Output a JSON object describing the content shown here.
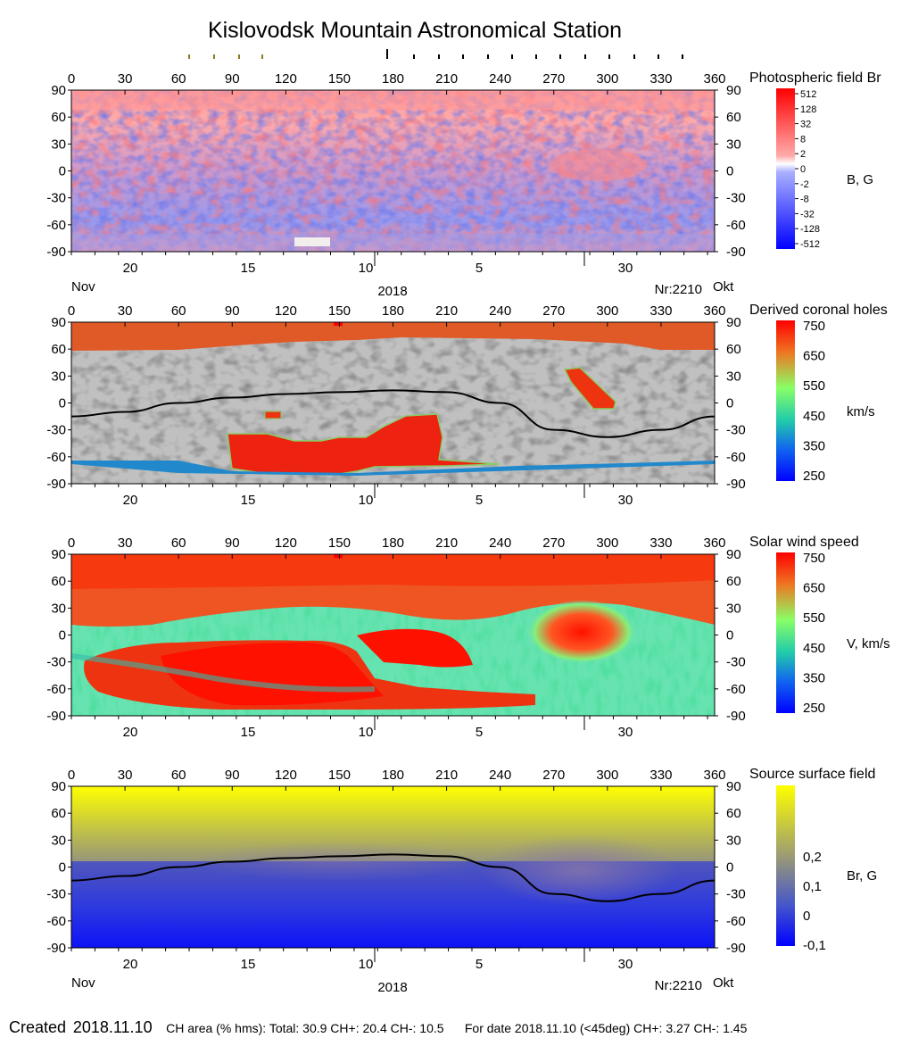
{
  "title": "Kislovodsk Mountain Astronomical Station",
  "footer": {
    "created_label": "Created",
    "created_date": "2018.11.10",
    "ch_area": "CH area (% hms): Total: 30.9 CH+: 20.4   CH-: 10.5",
    "for_date": "For date 2018.11.10 (<45deg) CH+: 3.27    CH-: 1.45"
  },
  "chart_data": [
    {
      "type": "heatmap",
      "title": "Photospheric field Br",
      "colorbar_label": "B, G",
      "colorbar_ticks": [
        "512",
        "128",
        "32",
        "8",
        "2",
        "0",
        "-2",
        "-8",
        "-32",
        "-128",
        "-512"
      ],
      "x_ticks": [
        "0",
        "30",
        "60",
        "90",
        "120",
        "150",
        "180",
        "210",
        "240",
        "270",
        "300",
        "330",
        "360"
      ],
      "y_ticks": [
        "90",
        "60",
        "30",
        "0",
        "-30",
        "-60",
        "-90"
      ],
      "date_ticks": [
        "20",
        "15",
        "10",
        "5",
        "30"
      ],
      "left_month": "Nov",
      "year": "2018",
      "rotation": "Nr:2210",
      "right_month": "Okt"
    },
    {
      "type": "heatmap",
      "title": "Derived coronal holes",
      "colorbar_label": "km/s",
      "colorbar_ticks": [
        "750",
        "650",
        "550",
        "450",
        "350",
        "250"
      ],
      "x_ticks": [
        "0",
        "30",
        "60",
        "90",
        "120",
        "150",
        "180",
        "210",
        "240",
        "270",
        "300",
        "330",
        "360"
      ],
      "y_ticks": [
        "90",
        "60",
        "30",
        "0",
        "-30",
        "-60",
        "-90"
      ],
      "date_ticks": [
        "20",
        "15",
        "10",
        "5",
        "30"
      ],
      "neutral_line": [
        [
          0,
          -15
        ],
        [
          30,
          -10
        ],
        [
          60,
          0
        ],
        [
          90,
          6
        ],
        [
          120,
          10
        ],
        [
          150,
          12
        ],
        [
          180,
          14
        ],
        [
          210,
          12
        ],
        [
          240,
          0
        ],
        [
          270,
          -30
        ],
        [
          300,
          -38
        ],
        [
          330,
          -30
        ],
        [
          360,
          -15
        ]
      ]
    },
    {
      "type": "heatmap",
      "title": "Solar wind speed",
      "colorbar_label": "V, km/s",
      "colorbar_ticks": [
        "750",
        "650",
        "550",
        "450",
        "350",
        "250"
      ],
      "x_ticks": [
        "0",
        "30",
        "60",
        "90",
        "120",
        "150",
        "180",
        "210",
        "240",
        "270",
        "300",
        "330",
        "360"
      ],
      "y_ticks": [
        "90",
        "60",
        "30",
        "0",
        "-30",
        "-60",
        "-90"
      ],
      "date_ticks": [
        "20",
        "15",
        "10",
        "5",
        "30"
      ]
    },
    {
      "type": "heatmap",
      "title": "Source surface field",
      "colorbar_label": "Br, G",
      "colorbar_ticks": [
        "0,2",
        "0,1",
        "0",
        "-0,1"
      ],
      "x_ticks": [
        "0",
        "30",
        "60",
        "90",
        "120",
        "150",
        "180",
        "210",
        "240",
        "270",
        "300",
        "330",
        "360"
      ],
      "y_ticks": [
        "90",
        "60",
        "30",
        "0",
        "-30",
        "-60",
        "-90"
      ],
      "date_ticks": [
        "20",
        "15",
        "10",
        "5",
        "30"
      ],
      "left_month": "Nov",
      "year": "2018",
      "rotation": "Nr:2210",
      "right_month": "Okt",
      "neutral_line": [
        [
          0,
          -15
        ],
        [
          30,
          -10
        ],
        [
          60,
          0
        ],
        [
          90,
          6
        ],
        [
          120,
          10
        ],
        [
          150,
          12
        ],
        [
          180,
          14
        ],
        [
          210,
          12
        ],
        [
          240,
          0
        ],
        [
          270,
          -30
        ],
        [
          300,
          -38
        ],
        [
          330,
          -30
        ],
        [
          360,
          -15
        ]
      ]
    }
  ]
}
